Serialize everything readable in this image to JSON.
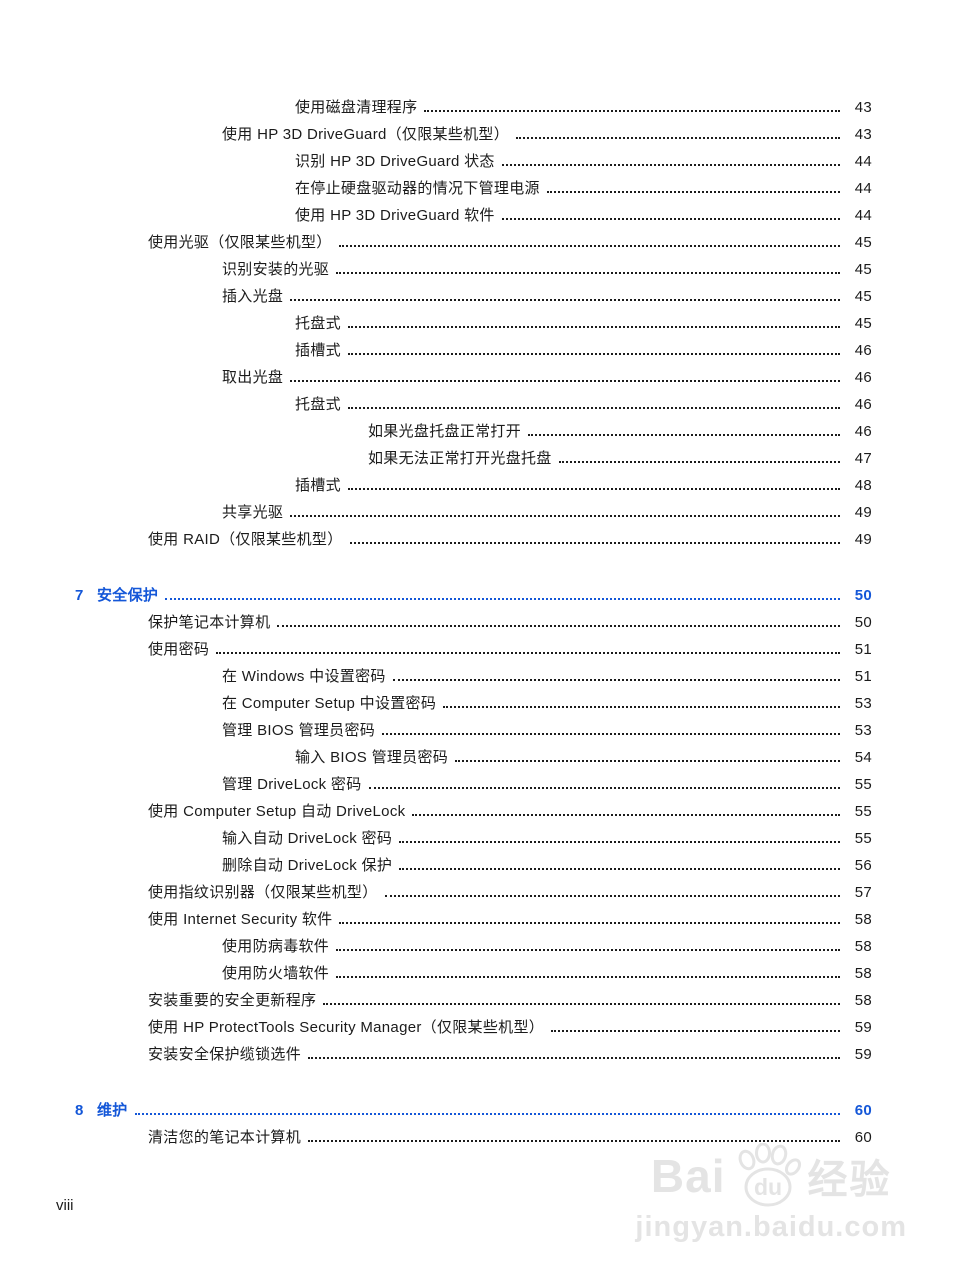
{
  "document": {
    "footer_page_label": "viii",
    "toc_rows": [
      {
        "level": 4,
        "label": "使用磁盘清理程序",
        "page": "43"
      },
      {
        "level": 3,
        "label": "使用 HP 3D DriveGuard（仅限某些机型）",
        "page": "43"
      },
      {
        "level": 4,
        "label": "识别 HP 3D DriveGuard 状态",
        "page": "44"
      },
      {
        "level": 4,
        "label": "在停止硬盘驱动器的情况下管理电源",
        "page": "44"
      },
      {
        "level": 4,
        "label": "使用 HP 3D DriveGuard 软件",
        "page": "44"
      },
      {
        "level": 2,
        "label": "使用光驱（仅限某些机型）",
        "page": "45"
      },
      {
        "level": 3,
        "label": "识别安装的光驱",
        "page": "45"
      },
      {
        "level": 3,
        "label": "插入光盘",
        "page": "45"
      },
      {
        "level": 4,
        "label": "托盘式",
        "page": "45"
      },
      {
        "level": 4,
        "label": "插槽式",
        "page": "46"
      },
      {
        "level": 3,
        "label": "取出光盘",
        "page": "46"
      },
      {
        "level": 4,
        "label": "托盘式",
        "page": "46"
      },
      {
        "level": 5,
        "label": "如果光盘托盘正常打开",
        "page": "46"
      },
      {
        "level": 5,
        "label": "如果无法正常打开光盘托盘",
        "page": "47"
      },
      {
        "level": 4,
        "label": "插槽式",
        "page": "48"
      },
      {
        "level": 3,
        "label": "共享光驱",
        "page": "49"
      },
      {
        "level": 2,
        "label": "使用 RAID（仅限某些机型）",
        "page": "49"
      },
      {
        "type": "chapter",
        "number": "7",
        "label": "安全保护",
        "page": "50"
      },
      {
        "level": 2,
        "label": "保护笔记本计算机",
        "page": "50"
      },
      {
        "level": 2,
        "label": "使用密码",
        "page": "51"
      },
      {
        "level": 3,
        "label": "在 Windows 中设置密码",
        "page": "51"
      },
      {
        "level": 3,
        "label": "在 Computer Setup 中设置密码",
        "page": "53"
      },
      {
        "level": 3,
        "label": "管理 BIOS 管理员密码",
        "page": "53"
      },
      {
        "level": 4,
        "label": "输入 BIOS 管理员密码",
        "page": "54"
      },
      {
        "level": 3,
        "label": "管理 DriveLock 密码",
        "page": "55"
      },
      {
        "level": 2,
        "label": "使用 Computer Setup 自动 DriveLock",
        "page": "55"
      },
      {
        "level": 3,
        "label": "输入自动 DriveLock 密码",
        "page": "55"
      },
      {
        "level": 3,
        "label": "删除自动 DriveLock 保护",
        "page": "56"
      },
      {
        "level": 2,
        "label": "使用指纹识别器（仅限某些机型）",
        "page": "57"
      },
      {
        "level": 2,
        "label": "使用 Internet Security 软件",
        "page": "58"
      },
      {
        "level": 3,
        "label": "使用防病毒软件",
        "page": "58"
      },
      {
        "level": 3,
        "label": "使用防火墙软件",
        "page": "58"
      },
      {
        "level": 2,
        "label": "安装重要的安全更新程序",
        "page": "58"
      },
      {
        "level": 2,
        "label": "使用 HP ProtectTools Security Manager（仅限某些机型）",
        "page": "59"
      },
      {
        "level": 2,
        "label": "安装安全保护缆锁选件",
        "page": "59"
      },
      {
        "type": "chapter",
        "number": "8",
        "label": "维护",
        "page": "60"
      },
      {
        "level": 2,
        "label": "清洁您的笔记本计算机",
        "page": "60"
      }
    ]
  },
  "watermark": {
    "bai": "Bai",
    "du": "du",
    "suffix": "经验",
    "url": "jingyan.baidu.com"
  },
  "colors": {
    "chapter_accent": "#1457d8",
    "body_text": "#1b1b1b",
    "watermark_gray": "#e4e4e4"
  }
}
